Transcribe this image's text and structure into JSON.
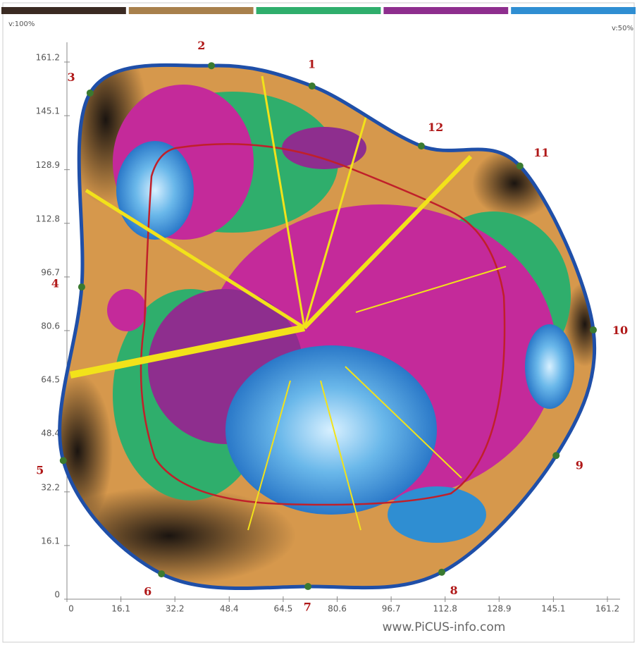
{
  "chart_data": {
    "type": "tomogram",
    "corner_labels": [
      "v:100%",
      "v:50%"
    ],
    "footer": "www.PiCUS-info.com",
    "colorbar": [
      "#3a2a22",
      "#a8804c",
      "#2fae6c",
      "#8e2e8e",
      "#2f8ed2"
    ],
    "outline_color": "#1f4fa8",
    "xlim": [
      0,
      161.2
    ],
    "ylim": [
      0,
      161.2
    ],
    "xticks": [
      0,
      16.1,
      32.2,
      48.4,
      64.5,
      80.6,
      96.7,
      112.8,
      128.9,
      145.1,
      161.2
    ],
    "yticks": [
      0,
      16.1,
      32.2,
      48.4,
      64.5,
      80.6,
      96.7,
      112.8,
      128.9,
      145.1,
      161.2
    ],
    "sensors": {
      "labels": [
        "1",
        "2",
        "3",
        "4",
        "5",
        "6",
        "7",
        "8",
        "9",
        "10",
        "11",
        "12"
      ],
      "x": [
        73.1,
        43.1,
        6.9,
        4.4,
        -1.1,
        28.2,
        71.9,
        111.8,
        145.9,
        157.0,
        135.1,
        105.7
      ],
      "y": [
        154.0,
        160.1,
        151.9,
        93.7,
        41.6,
        7.6,
        3.8,
        8.1,
        43.1,
        80.8,
        130.0,
        136.0
      ],
      "color": "#3a7a30"
    }
  }
}
